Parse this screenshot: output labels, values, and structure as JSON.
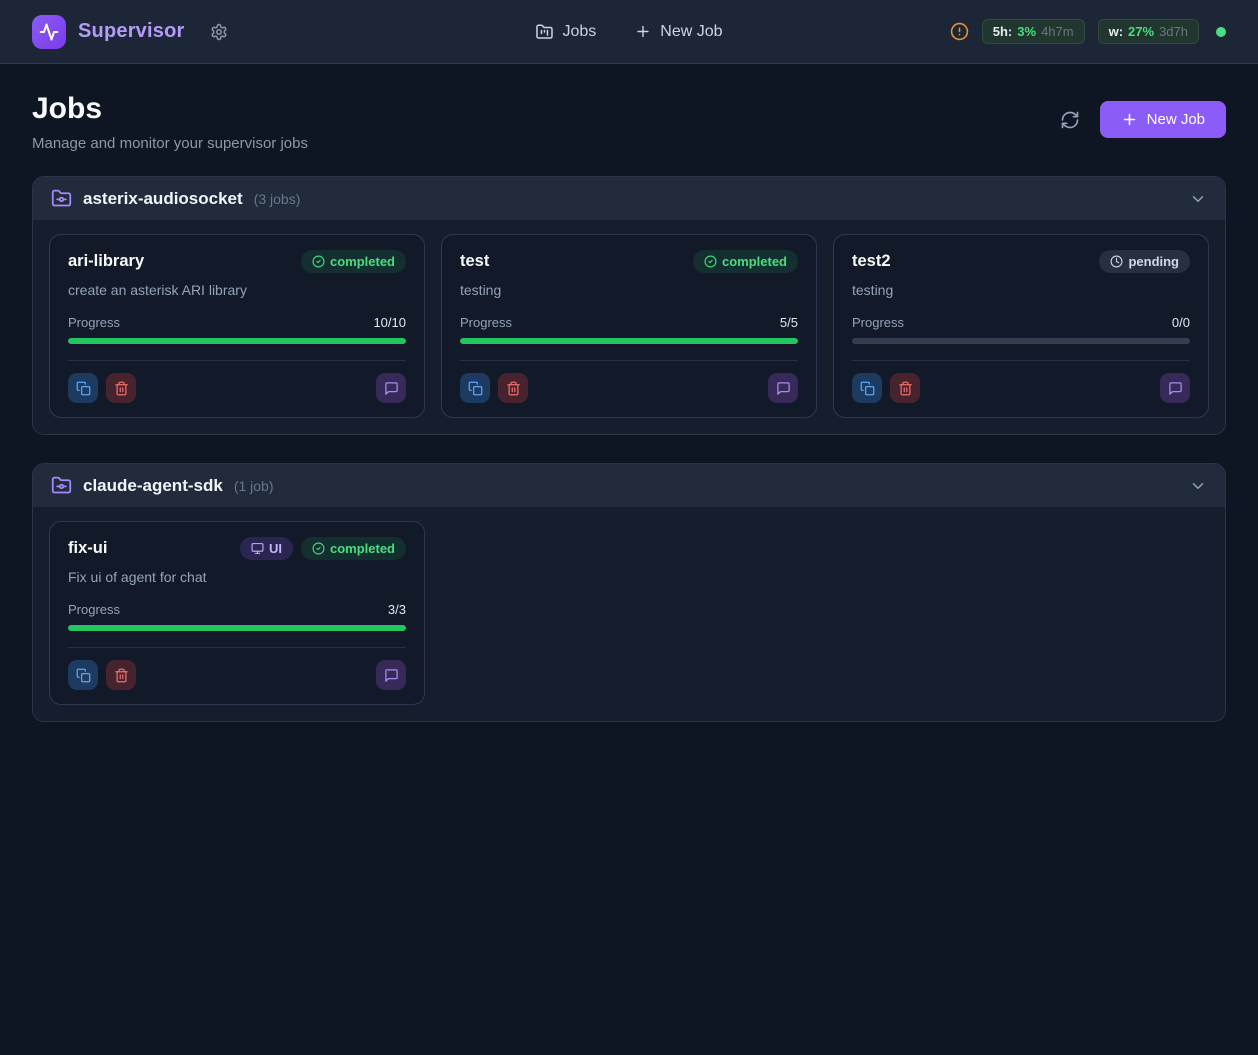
{
  "topbar": {
    "brand": "Supervisor",
    "nav_jobs": "Jobs",
    "nav_new_job": "New Job",
    "usage": [
      {
        "label": "5h:",
        "percent": "3%",
        "time": "4h7m"
      },
      {
        "label": "w:",
        "percent": "27%",
        "time": "3d7h"
      }
    ]
  },
  "header": {
    "title": "Jobs",
    "subtitle": "Manage and monitor your supervisor jobs",
    "new_job_label": "New Job"
  },
  "groups": [
    {
      "name": "asterix-audiosocket",
      "count_label": "(3 jobs)",
      "jobs": [
        {
          "title": "ari-library",
          "status_label": "completed",
          "description": "create an asterisk ARI library",
          "progress_label": "Progress",
          "progress_value": "10/10",
          "progress_pct": 100
        },
        {
          "title": "test",
          "status_label": "completed",
          "description": "testing",
          "progress_label": "Progress",
          "progress_value": "5/5",
          "progress_pct": 100
        },
        {
          "title": "test2",
          "status_label": "pending",
          "description": "testing",
          "progress_label": "Progress",
          "progress_value": "0/0",
          "progress_pct": 0
        }
      ]
    },
    {
      "name": "claude-agent-sdk",
      "count_label": "(1 job)",
      "jobs": [
        {
          "title": "fix-ui",
          "tag_label": "UI",
          "status_label": "completed",
          "description": "Fix ui of agent for chat",
          "progress_label": "Progress",
          "progress_value": "3/3",
          "progress_pct": 100
        }
      ]
    }
  ],
  "colors": {
    "accent_purple": "#8b5cf6",
    "progress_green": "#22c55e",
    "status_green": "#4ade80",
    "warning_orange": "#e8903c",
    "page_bg": "#0e1523",
    "topbar_bg": "#1d2636",
    "card_bg": "#121a29"
  }
}
